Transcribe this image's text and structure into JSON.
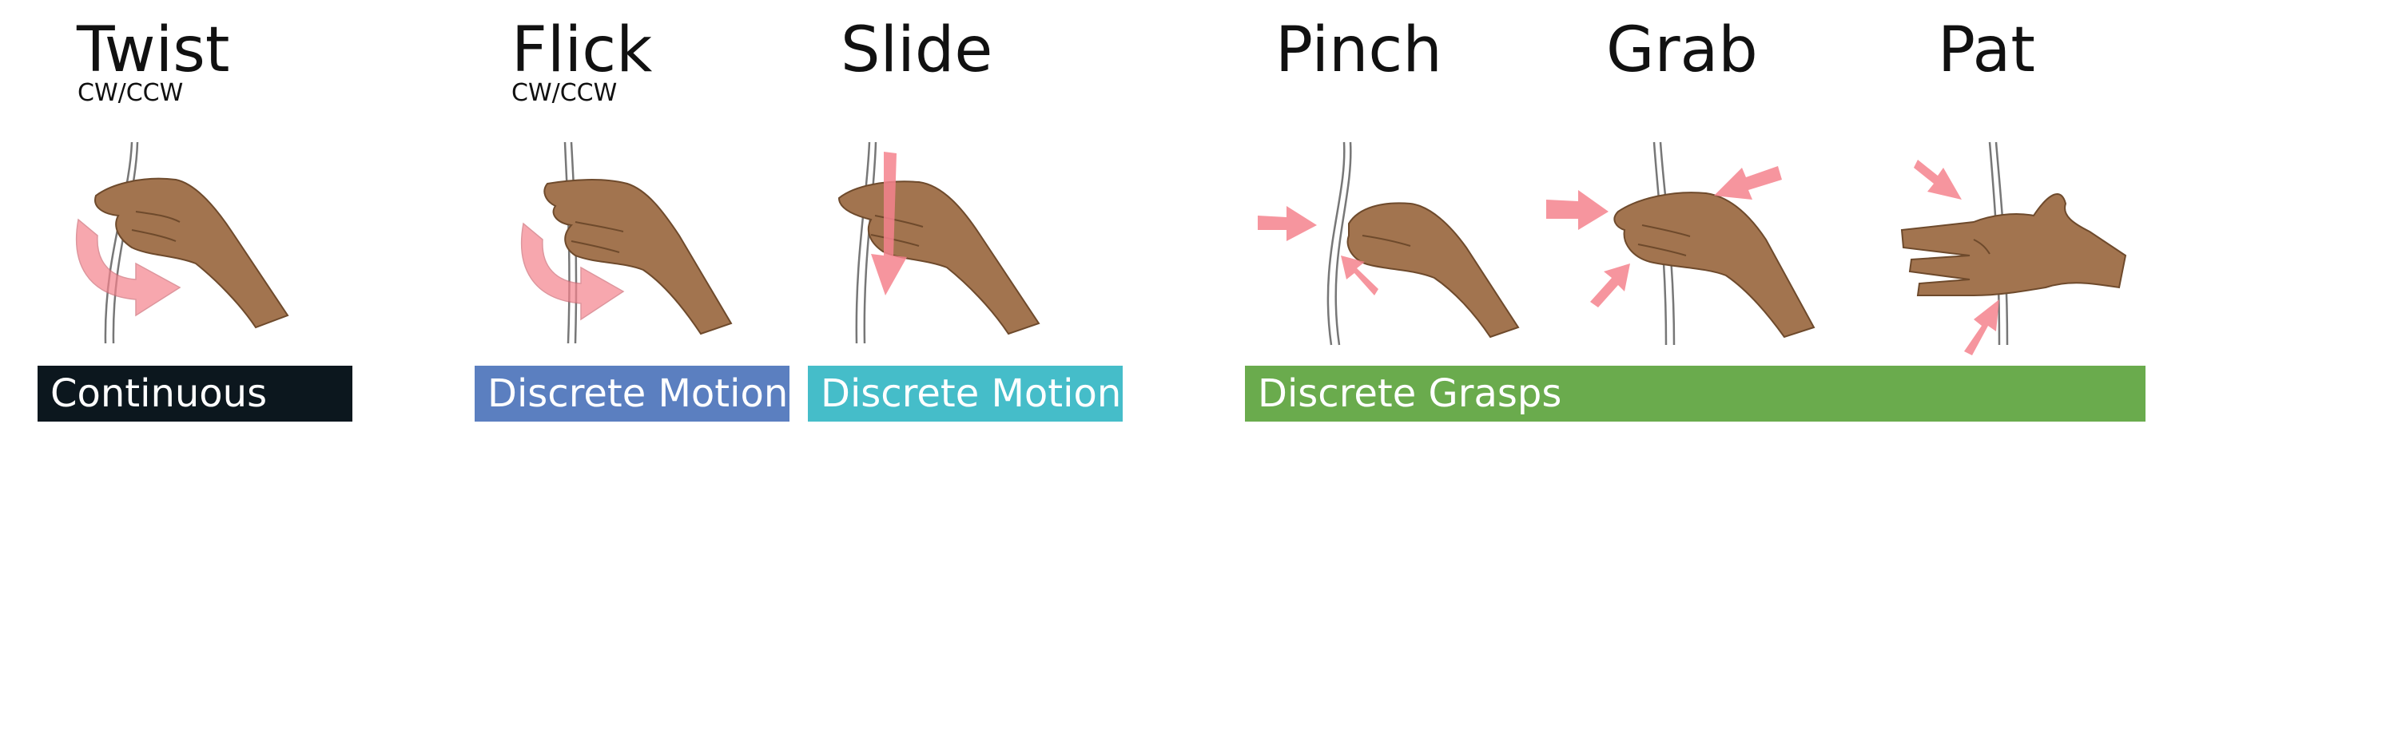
{
  "gestures": {
    "twist": {
      "title": "Twist",
      "subtitle": "CW/CCW"
    },
    "flick": {
      "title": "Flick",
      "subtitle": "CW/CCW"
    },
    "slide": {
      "title": "Slide"
    },
    "pinch": {
      "title": "Pinch"
    },
    "grab": {
      "title": "Grab"
    },
    "pat": {
      "title": "Pat"
    }
  },
  "categories": {
    "continuous": {
      "label": "Continuous",
      "color": "#0c171e"
    },
    "discrete_motion_flick": {
      "label": "Discrete Motion",
      "color": "#5b7fc0"
    },
    "discrete_motion_slide": {
      "label": "Discrete Motion",
      "color": "#45bdc9"
    },
    "discrete_grasps": {
      "label": "Discrete Grasps",
      "color": "#6aab4d"
    }
  },
  "colors": {
    "arrow": "#f5838d",
    "skin": "#a2744f",
    "cord": "#777777"
  }
}
